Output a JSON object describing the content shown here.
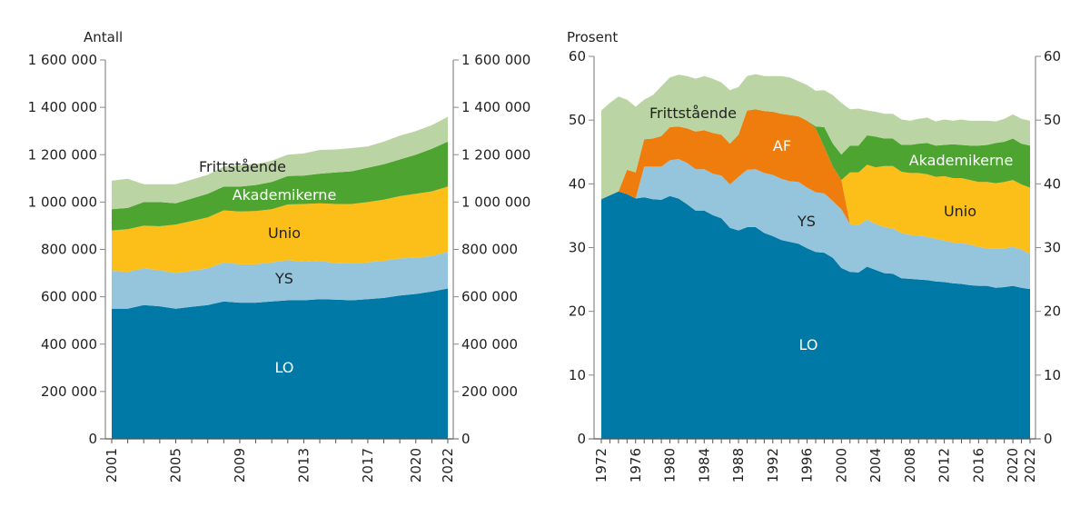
{
  "colors": {
    "LO": "#0079a6",
    "YS": "#94c5dd",
    "AF": "#ee7d0e",
    "Unio": "#fcbf1a",
    "Akademikerne": "#4da431",
    "Frittstående": "#bad5a3"
  },
  "chart_data": [
    {
      "type": "area",
      "stacked": true,
      "ylabel": "Antall",
      "ylim": [
        0,
        1600000
      ],
      "yticks": [
        "0",
        "200 000",
        "400 000",
        "600 000",
        "800 000",
        "1 000 000",
        "1 200 000",
        "1 400 000",
        "1 600 000"
      ],
      "xtick_labels": [
        "2001",
        "2005",
        "2009",
        "2013",
        "2017",
        "2020",
        "2022"
      ],
      "x": [
        2001,
        2002,
        2003,
        2004,
        2005,
        2006,
        2007,
        2008,
        2009,
        2010,
        2011,
        2012,
        2013,
        2014,
        2015,
        2016,
        2017,
        2018,
        2019,
        2020,
        2021,
        2022
      ],
      "series": [
        {
          "name": "LO",
          "values": [
            550000,
            550000,
            565000,
            560000,
            550000,
            558000,
            565000,
            580000,
            575000,
            575000,
            580000,
            585000,
            585000,
            590000,
            588000,
            585000,
            590000,
            595000,
            605000,
            612000,
            622000,
            635000
          ]
        },
        {
          "name": "YS",
          "values": [
            160000,
            155000,
            155000,
            152000,
            150000,
            152000,
            155000,
            165000,
            162000,
            162000,
            165000,
            170000,
            163000,
            162000,
            154000,
            155000,
            155000,
            157000,
            157000,
            153000,
            150000,
            155000
          ]
        },
        {
          "name": "Unio",
          "values": [
            170000,
            180000,
            180000,
            186000,
            205000,
            210000,
            215000,
            220000,
            223000,
            225000,
            225000,
            235000,
            244000,
            243000,
            250000,
            252000,
            255000,
            258000,
            263000,
            270000,
            273000,
            275000
          ]
        },
        {
          "name": "Akademikerne",
          "values": [
            90000,
            90000,
            100000,
            102000,
            90000,
            95000,
            100000,
            100000,
            105000,
            110000,
            115000,
            120000,
            120000,
            125000,
            133000,
            138000,
            145000,
            150000,
            155000,
            165000,
            180000,
            190000
          ]
        },
        {
          "name": "Frittstående",
          "values": [
            120000,
            123000,
            75000,
            75000,
            80000,
            80000,
            80000,
            85000,
            90000,
            88000,
            90000,
            90000,
            93000,
            100000,
            97000,
            98000,
            90000,
            95000,
            100000,
            100000,
            100000,
            105000
          ]
        }
      ]
    },
    {
      "type": "area",
      "stacked": true,
      "ylabel": "Prosent",
      "ylim": [
        0,
        60
      ],
      "yticks": [
        "0",
        "10",
        "20",
        "30",
        "40",
        "50",
        "60"
      ],
      "xtick_labels": [
        "1972",
        "1976",
        "1980",
        "1984",
        "1988",
        "1992",
        "1996",
        "2000",
        "2004",
        "2008",
        "2012",
        "2016",
        "2020",
        "2022"
      ],
      "x_start": 1972,
      "x_end": 2022,
      "series": [
        {
          "name": "LO",
          "values": [
            37.6,
            38.2,
            38.8,
            38.4,
            37.7,
            37.9,
            37.6,
            37.5,
            38.1,
            37.7,
            36.8,
            35.8,
            35.8,
            35.1,
            34.6,
            33.1,
            32.7,
            33.2,
            33.2,
            32.3,
            31.8,
            31.2,
            30.9,
            30.6,
            29.9,
            29.3,
            29.2,
            28.4,
            26.8,
            26.2,
            26.1,
            27.0,
            26.5,
            26.0,
            25.9,
            25.2,
            25.1,
            25.0,
            24.9,
            24.7,
            24.6,
            24.4,
            24.3,
            24.1,
            24.0,
            24.0,
            23.7,
            23.8,
            24.0,
            23.7,
            23.5
          ]
        },
        {
          "name": "YS",
          "values": [
            0,
            0,
            0,
            0,
            0,
            4.8,
            5.1,
            5.2,
            5.6,
            6.2,
            6.5,
            6.5,
            6.5,
            6.5,
            6.7,
            6.8,
            8.4,
            9.0,
            9.1,
            9.4,
            9.6,
            9.6,
            9.5,
            9.7,
            9.5,
            9.4,
            9.3,
            8.9,
            9.2,
            7.5,
            7.4,
            7.4,
            7.2,
            7.2,
            7.1,
            7.1,
            6.9,
            6.9,
            6.8,
            6.7,
            6.5,
            6.4,
            6.4,
            6.4,
            6.1,
            5.9,
            6.2,
            6.1,
            6.1,
            6.0,
            5.5
          ]
        },
        {
          "name": "AF",
          "values": [
            0,
            0,
            0,
            3.8,
            4.1,
            4.3,
            4.4,
            4.8,
            5.2,
            5.1,
            5.4,
            5.9,
            6.1,
            6.4,
            6.4,
            6.4,
            6.6,
            9.3,
            9.4,
            9.7,
            9.9,
            10.2,
            10.4,
            10.3,
            10.5,
            10.0,
            7.3,
            5.4,
            4.6,
            0,
            0,
            0,
            0,
            0,
            0,
            0,
            0,
            0,
            0,
            0,
            0,
            0,
            0,
            0,
            0,
            0,
            0,
            0,
            0,
            0,
            0
          ]
        },
        {
          "name": "Unio",
          "values": [
            0,
            0,
            0,
            0,
            0,
            0,
            0,
            0,
            0,
            0,
            0,
            0,
            0,
            0,
            0,
            0,
            0,
            0,
            0,
            0,
            0,
            0,
            0,
            0,
            0,
            0,
            0,
            0,
            0,
            8.1,
            8.3,
            8.6,
            8.9,
            9.6,
            9.8,
            9.6,
            9.7,
            9.8,
            9.8,
            9.7,
            10.1,
            10.1,
            10.2,
            10.1,
            10.2,
            10.4,
            10.2,
            10.4,
            10.5,
            10.2,
            10.4
          ]
        },
        {
          "name": "Akademikerne",
          "values": [
            0,
            0,
            0,
            0,
            0,
            0,
            0,
            0,
            0,
            0,
            0,
            0,
            0,
            0,
            0,
            0,
            0,
            0,
            0,
            0,
            0,
            0,
            0,
            0,
            0,
            0.3,
            3.1,
            3.6,
            4.0,
            4.2,
            4.2,
            4.6,
            4.8,
            4.3,
            4.3,
            4.2,
            4.4,
            4.6,
            4.9,
            4.9,
            4.9,
            5.3,
            5.2,
            5.4,
            5.7,
            5.8,
            6.3,
            6.3,
            6.5,
            6.4,
            6.6
          ]
        },
        {
          "name": "Frittstående",
          "values": [
            13.9,
            14.5,
            14.9,
            11.0,
            10.3,
            6.2,
            6.8,
            7.8,
            7.8,
            8.1,
            8.2,
            8.3,
            8.5,
            8.5,
            8.2,
            8.4,
            7.5,
            5.4,
            5.5,
            5.5,
            5.6,
            5.9,
            5.9,
            5.5,
            5.6,
            5.6,
            5.8,
            7.6,
            8.1,
            5.7,
            5.8,
            3.9,
            3.9,
            3.9,
            3.9,
            4.0,
            3.8,
            3.9,
            4.0,
            3.8,
            4.0,
            3.7,
            4.0,
            3.9,
            3.9,
            3.8,
            3.4,
            3.6,
            3.8,
            3.9,
            3.9
          ]
        }
      ]
    }
  ]
}
